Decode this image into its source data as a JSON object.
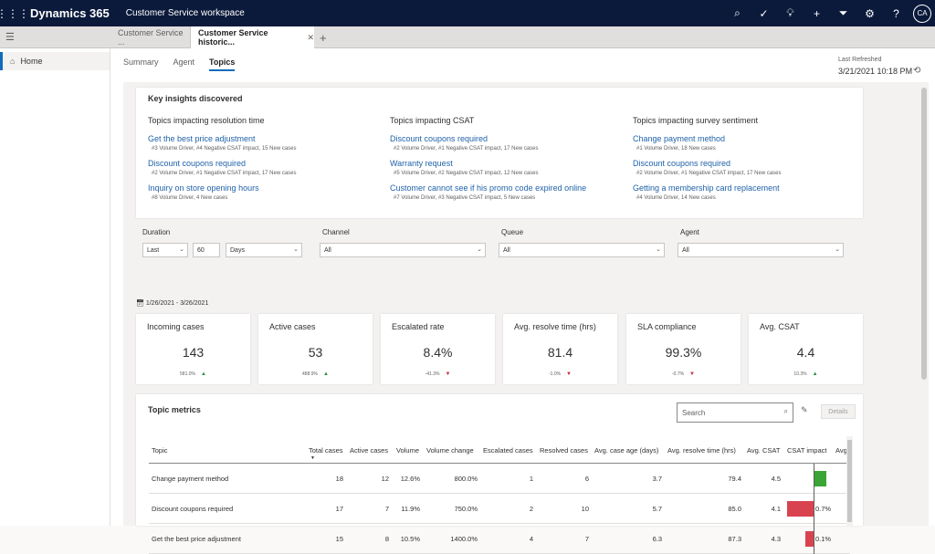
{
  "topbar": {
    "brand": "Dynamics 365",
    "workspace": "Customer Service workspace",
    "avatar": "CA"
  },
  "tabs": [
    {
      "label": "Customer Service ..."
    },
    {
      "label": "Customer Service historic..."
    }
  ],
  "sidebar": {
    "home_label": "Home"
  },
  "subtabs": [
    "Summary",
    "Agent",
    "Topics"
  ],
  "refresh": {
    "label": "Last Refreshed",
    "date": "3/21/2021 10:18 PM"
  },
  "insights": {
    "title": "Key insights discovered",
    "columns": [
      {
        "heading": "Topics impacting resolution time",
        "items": [
          {
            "link": "Get the best price adjustment",
            "meta": "#3 Volume Driver,   #4 Negative CSAT impact,   15 New cases"
          },
          {
            "link": "Discount coupons required",
            "meta": "#2 Volume Driver,   #1 Negative CSAT impact,   17 New cases"
          },
          {
            "link": "Inquiry on store opening hours",
            "meta": "#8 Volume Driver,   4 New cases"
          }
        ]
      },
      {
        "heading": "Topics impacting CSAT",
        "items": [
          {
            "link": "Discount coupons required",
            "meta": "#2 Volume Driver,   #1 Negative CSAT impact,   17 New cases"
          },
          {
            "link": "Warranty request",
            "meta": "#5 Volume Driver,   #2 Negative CSAT impact,   12 New cases"
          },
          {
            "link": "Customer cannot see if his promo code expired online",
            "meta": "#7 Volume Driver,   #3 Negative CSAT impact,   5 New cases"
          }
        ]
      },
      {
        "heading": "Topics impacting survey sentiment",
        "items": [
          {
            "link": "Change payment method",
            "meta": "#1 Volume Driver,   18 New cases"
          },
          {
            "link": "Discount coupons required",
            "meta": "#2 Volume Driver,   #1 Negative CSAT impact,   17 New cases"
          },
          {
            "link": "Getting a membership card replacement",
            "meta": "#4 Volume Driver,   14 New cases"
          }
        ]
      }
    ]
  },
  "filters": {
    "duration_label": "Duration",
    "duration_mode": "Last",
    "duration_value": "60",
    "duration_unit": "Days",
    "channel_label": "Channel",
    "channel_value": "All",
    "queue_label": "Queue",
    "queue_value": "All",
    "agent_label": "Agent",
    "agent_value": "All",
    "date_range": "1/26/2021 - 3/26/2021"
  },
  "kpis": [
    {
      "title": "Incoming cases",
      "value": "143",
      "change": "581.0%",
      "direction": "up"
    },
    {
      "title": "Active cases",
      "value": "53",
      "change": "488.9%",
      "direction": "up"
    },
    {
      "title": "Escalated rate",
      "value": "8.4%",
      "change": "-41.3%",
      "direction": "down"
    },
    {
      "title": "Avg. resolve time (hrs)",
      "value": "81.4",
      "change": "-1.0%",
      "direction": "down"
    },
    {
      "title": "SLA compliance",
      "value": "99.3%",
      "change": "-0.7%",
      "direction": "down"
    },
    {
      "title": "Avg. CSAT",
      "value": "4.4",
      "change": "10.3%",
      "direction": "up"
    }
  ],
  "topic_metrics": {
    "title": "Topic metrics",
    "search_placeholder": "Search",
    "details_label": "Details",
    "columns": [
      "Topic",
      "Total cases",
      "Active cases",
      "Volume",
      "Volume change",
      "Escalated cases",
      "Resolved cases",
      "Avg. case age (days)",
      "Avg. resolve time (hrs)",
      "Avg. CSAT",
      "CSAT impact",
      "Avg"
    ],
    "rows": [
      {
        "topic": "Change payment method",
        "total": "18",
        "active": "12",
        "volume": "12.6%",
        "volume_change": "800.0%",
        "escalated": "1",
        "resolved": "6",
        "case_age": "3.7",
        "resolve_time": "79.4",
        "csat": "4.5",
        "impact_label": "",
        "impact": 1.0,
        "impact_color": "#3aa535"
      },
      {
        "topic": "Discount coupons required",
        "total": "17",
        "active": "7",
        "volume": "11.9%",
        "volume_change": "750.0%",
        "escalated": "2",
        "resolved": "10",
        "case_age": "5.7",
        "resolve_time": "85.0",
        "csat": "4.1",
        "impact_label": "0.7%",
        "impact": -0.7,
        "impact_color": "#d9434f"
      },
      {
        "topic": "Get the best price adjustment",
        "total": "15",
        "active": "8",
        "volume": "10.5%",
        "volume_change": "1400.0%",
        "escalated": "4",
        "resolved": "7",
        "case_age": "6.3",
        "resolve_time": "87.3",
        "csat": "4.3",
        "impact_label": "0.1%",
        "impact": -0.1,
        "impact_color": "#d9434f"
      }
    ]
  }
}
